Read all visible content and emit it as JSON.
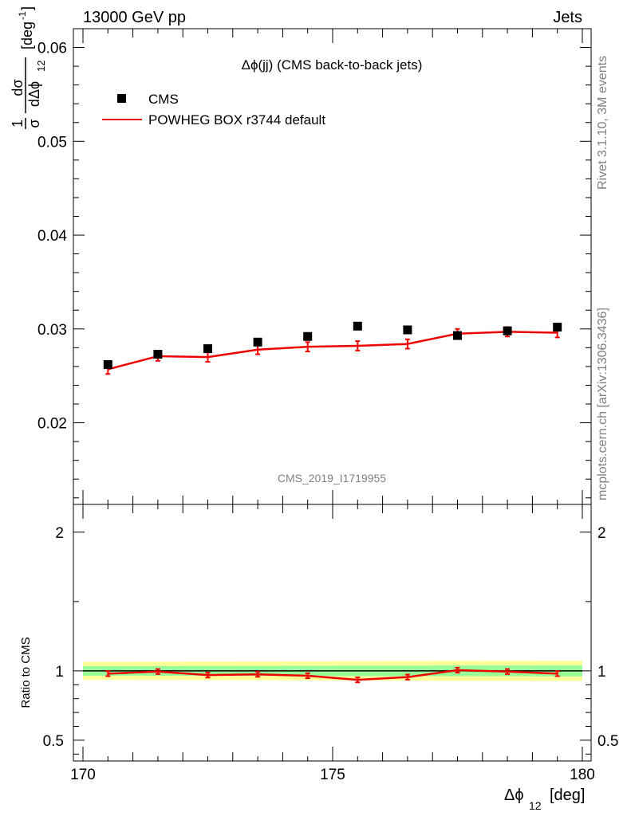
{
  "header": {
    "left": "13000 GeV pp",
    "right": "Jets"
  },
  "side_labels": {
    "rivet": "Rivet 3.1.10,  3M events",
    "site": "mcplots.cern.ch [arXiv:1306.3436]"
  },
  "plot_title": "Δϕ(jj) (CMS back-to-back jets)",
  "watermark": "CMS_2019_I1719955",
  "legend": {
    "data_label": "CMS",
    "mc_label": "POWHEG BOX r3744 default"
  },
  "axes": {
    "main_ylabel_prefix": "1",
    "main_ylabel_dsigma": "dσ",
    "main_ylabel_sigma": "σ",
    "main_ylabel_dphi": "dΔϕ",
    "main_ylabel_sub": "12",
    "main_ylabel_unit": "[deg",
    "main_ylabel_unit_sup": "-1",
    "main_ylabel_unit_close": "]",
    "ratio_ylabel": "Ratio to CMS",
    "xlabel_main": "Δϕ",
    "xlabel_sub": "12",
    "xlabel_unit": "[deg]"
  },
  "colors": {
    "data": "#000000",
    "mc": "#ee0000",
    "band_green": "#99ff99",
    "band_yellow": "#ffff99"
  },
  "chart_data": [
    {
      "type": "scatter",
      "panel": "main",
      "x_range": [
        170,
        180
      ],
      "y_range": [
        0.0113,
        0.062
      ],
      "y_ticks": [
        0.02,
        0.03,
        0.04,
        0.05,
        0.06
      ],
      "y_tick_labels": [
        "0.02",
        "0.03",
        "0.04",
        "0.05",
        "0.06"
      ],
      "x": [
        170.5,
        171.5,
        172.5,
        173.5,
        174.5,
        175.5,
        176.5,
        177.5,
        178.5,
        179.5
      ],
      "series": [
        {
          "name": "CMS",
          "kind": "markers",
          "values": [
            0.0262,
            0.0273,
            0.0279,
            0.0286,
            0.0292,
            0.0303,
            0.0299,
            0.0293,
            0.0298,
            0.0302
          ],
          "errors": [
            0.0002,
            0.0002,
            0.0002,
            0.0002,
            0.0002,
            0.0002,
            0.0002,
            0.0003,
            0.0002,
            0.0002
          ]
        },
        {
          "name": "POWHEG BOX r3744 default",
          "kind": "line",
          "values": [
            0.0257,
            0.0271,
            0.027,
            0.0278,
            0.0281,
            0.0282,
            0.0284,
            0.0295,
            0.0297,
            0.0296
          ],
          "errors": [
            0.0005,
            0.0005,
            0.0005,
            0.0005,
            0.0005,
            0.0005,
            0.0005,
            0.0005,
            0.0005,
            0.0005
          ]
        }
      ]
    },
    {
      "type": "line",
      "panel": "ratio",
      "x_range": [
        170,
        180
      ],
      "y_range": [
        0.35,
        2.2
      ],
      "y_ticks": [
        0.5,
        1,
        2
      ],
      "y_tick_labels": [
        "0.5",
        "1",
        "2"
      ],
      "x_ticks": [
        170,
        175,
        180
      ],
      "x_tick_labels": [
        "170",
        "175",
        "180"
      ],
      "x": [
        170.5,
        171.5,
        172.5,
        173.5,
        174.5,
        175.5,
        176.5,
        177.5,
        178.5,
        179.5
      ],
      "series": [
        {
          "name": "POWHEG BOX r3744 default",
          "values": [
            0.98,
            0.995,
            0.97,
            0.975,
            0.965,
            0.935,
            0.955,
            1.005,
            0.995,
            0.98
          ],
          "errors": [
            0.018,
            0.018,
            0.018,
            0.018,
            0.018,
            0.018,
            0.018,
            0.018,
            0.018,
            0.018
          ]
        }
      ],
      "bands": {
        "green_halfwidth": [
          0.035,
          0.035,
          0.036,
          0.036,
          0.037,
          0.038,
          0.038,
          0.039,
          0.039,
          0.04
        ],
        "yellow_halfwidth": [
          0.065,
          0.066,
          0.067,
          0.068,
          0.069,
          0.07,
          0.071,
          0.072,
          0.072,
          0.073
        ]
      }
    }
  ]
}
